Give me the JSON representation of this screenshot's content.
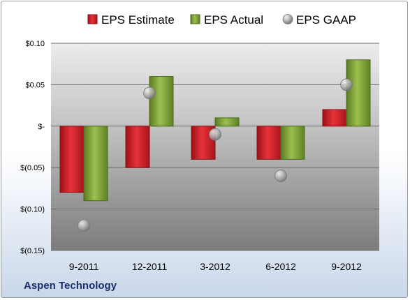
{
  "brand": "Aspen Technology",
  "colors": {
    "estimate": "#d2232a",
    "actual": "#7ea33a",
    "gaap": "#a0a0a0"
  },
  "chart_data": {
    "type": "bar",
    "categories": [
      "9-2011",
      "12-2011",
      "3-2012",
      "6-2012",
      "9-2012"
    ],
    "series": [
      {
        "name": "EPS Estimate",
        "type": "bar",
        "values": [
          -0.08,
          -0.05,
          -0.04,
          -0.04,
          0.02
        ]
      },
      {
        "name": "EPS Actual",
        "type": "bar",
        "values": [
          -0.09,
          0.06,
          0.01,
          -0.04,
          0.08
        ]
      },
      {
        "name": "EPS GAAP",
        "type": "scatter",
        "values": [
          -0.12,
          0.04,
          -0.01,
          -0.06,
          0.05
        ]
      }
    ],
    "yticks": [
      0.1,
      0.05,
      0,
      -0.05,
      -0.1,
      -0.15
    ],
    "ytick_labels": [
      "$0.10",
      "$0.05",
      "$-",
      "$(0.05)",
      "$(0.10)",
      "$(0.15)"
    ],
    "ylim": [
      -0.15,
      0.1
    ],
    "legend_position": "top",
    "grid": true
  }
}
